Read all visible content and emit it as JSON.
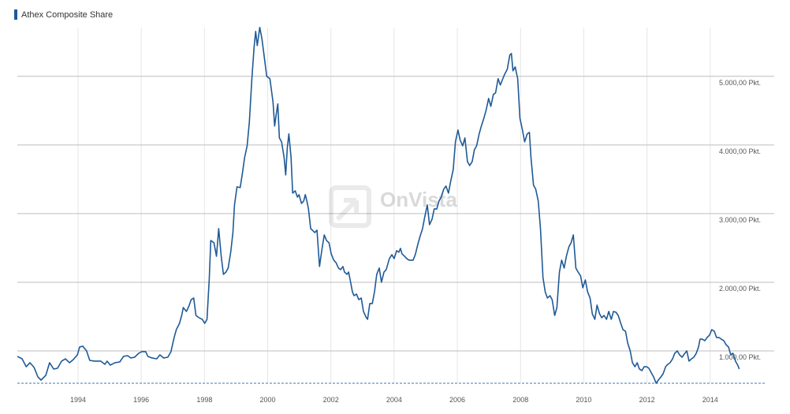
{
  "chart_data": {
    "type": "line",
    "watermark": "OnVista",
    "x": [
      1992.08,
      1992.23,
      1992.36,
      1992.48,
      1992.61,
      1992.73,
      1992.83,
      1992.98,
      1993.1,
      1993.23,
      1993.35,
      1993.48,
      1993.6,
      1993.73,
      1993.85,
      1993.98,
      1994.05,
      1994.15,
      1994.27,
      1994.37,
      1994.52,
      1994.72,
      1994.85,
      1994.92,
      1995.02,
      1995.17,
      1995.32,
      1995.44,
      1995.57,
      1995.67,
      1995.79,
      1995.92,
      1996.02,
      1996.14,
      1996.21,
      1996.34,
      1996.49,
      1996.59,
      1996.71,
      1996.84,
      1996.94,
      1997.04,
      1997.11,
      1997.21,
      1997.28,
      1997.33,
      1997.43,
      1997.51,
      1997.58,
      1997.66,
      1997.73,
      1997.83,
      1997.93,
      1998.01,
      1998.08,
      1998.15,
      1998.2,
      1998.3,
      1998.38,
      1998.45,
      1998.53,
      1998.6,
      1998.68,
      1998.75,
      1998.83,
      1998.9,
      1998.95,
      1999.03,
      1999.13,
      1999.2,
      1999.27,
      1999.35,
      1999.42,
      1999.5,
      1999.57,
      1999.62,
      1999.67,
      1999.75,
      1999.82,
      1999.9,
      1999.97,
      2000.07,
      2000.12,
      2000.17,
      2000.22,
      2000.27,
      2000.32,
      2000.37,
      2000.44,
      2000.52,
      2000.57,
      2000.62,
      2000.67,
      2000.74,
      2000.79,
      2000.87,
      2000.94,
      2000.99,
      2001.07,
      2001.14,
      2001.19,
      2001.24,
      2001.29,
      2001.36,
      2001.44,
      2001.49,
      2001.56,
      2001.64,
      2001.71,
      2001.79,
      2001.86,
      2001.94,
      2002.01,
      2002.09,
      2002.16,
      2002.24,
      2002.31,
      2002.38,
      2002.43,
      2002.51,
      2002.56,
      2002.61,
      2002.68,
      2002.73,
      2002.81,
      2002.88,
      2002.96,
      2003.03,
      2003.11,
      2003.16,
      2003.23,
      2003.31,
      2003.38,
      2003.45,
      2003.53,
      2003.6,
      2003.68,
      2003.75,
      2003.85,
      2003.93,
      2004.0,
      2004.08,
      2004.15,
      2004.2,
      2004.25,
      2004.33,
      2004.4,
      2004.47,
      2004.6,
      2004.67,
      2004.75,
      2004.82,
      2004.9,
      2004.97,
      2005.05,
      2005.12,
      2005.2,
      2005.27,
      2005.35,
      2005.42,
      2005.49,
      2005.57,
      2005.64,
      2005.72,
      2005.79,
      2005.87,
      2005.94,
      2006.02,
      2006.09,
      2006.17,
      2006.24,
      2006.32,
      2006.39,
      2006.47,
      2006.54,
      2006.61,
      2006.69,
      2006.76,
      2006.84,
      2006.91,
      2006.99,
      2007.06,
      2007.14,
      2007.21,
      2007.29,
      2007.36,
      2007.44,
      2007.49,
      2007.58,
      2007.66,
      2007.71,
      2007.76,
      2007.83,
      2007.91,
      2007.98,
      2008.06,
      2008.13,
      2008.21,
      2008.28,
      2008.33,
      2008.41,
      2008.48,
      2008.56,
      2008.63,
      2008.71,
      2008.78,
      2008.85,
      2008.93,
      2009.0,
      2009.08,
      2009.15,
      2009.23,
      2009.3,
      2009.38,
      2009.45,
      2009.53,
      2009.6,
      2009.67,
      2009.75,
      2009.82,
      2009.9,
      2009.97,
      2010.05,
      2010.12,
      2010.2,
      2010.27,
      2010.35,
      2010.42,
      2010.5,
      2010.57,
      2010.64,
      2010.72,
      2010.79,
      2010.87,
      2010.94,
      2011.02,
      2011.09,
      2011.17,
      2011.24,
      2011.32,
      2011.39,
      2011.47,
      2011.54,
      2011.62,
      2011.69,
      2011.76,
      2011.84,
      2011.91,
      2011.99,
      2012.06,
      2012.14,
      2012.21,
      2012.29,
      2012.36,
      2012.44,
      2012.51,
      2012.59,
      2012.66,
      2012.73,
      2012.81,
      2012.88,
      2012.96,
      2013.03,
      2013.11,
      2013.18,
      2013.26,
      2013.33,
      2013.41,
      2013.48,
      2013.56,
      2013.63,
      2013.68,
      2013.75,
      2013.83,
      2013.9,
      2013.98,
      2014.05,
      2014.13,
      2014.2,
      2014.28,
      2014.35,
      2014.43,
      2014.5,
      2014.58,
      2014.65,
      2014.72,
      2014.8,
      2014.87,
      2014.92
    ],
    "series": [
      {
        "name": "Athex Composite Share",
        "color": "#1f5a96",
        "values": [
          920,
          885,
          770,
          828,
          759,
          621,
          575,
          644,
          828,
          736,
          747,
          851,
          885,
          828,
          874,
          943,
          1057,
          1069,
          1000,
          862,
          851,
          851,
          805,
          851,
          793,
          828,
          839,
          920,
          931,
          897,
          908,
          966,
          989,
          989,
          920,
          897,
          885,
          943,
          897,
          908,
          989,
          1195,
          1310,
          1402,
          1517,
          1632,
          1575,
          1655,
          1747,
          1770,
          1517,
          1483,
          1460,
          1402,
          1460,
          2034,
          2609,
          2575,
          2379,
          2782,
          2379,
          2115,
          2149,
          2207,
          2437,
          2724,
          3126,
          3391,
          3379,
          3586,
          3816,
          3988,
          4333,
          4966,
          5425,
          5655,
          5448,
          5713,
          5540,
          5253,
          5000,
          4966,
          4793,
          4621,
          4276,
          4448,
          4598,
          4103,
          4046,
          3816,
          3563,
          3954,
          4161,
          3816,
          3299,
          3333,
          3241,
          3276,
          3149,
          3184,
          3276,
          3184,
          3069,
          2782,
          2747,
          2724,
          2759,
          2230,
          2460,
          2690,
          2609,
          2575,
          2414,
          2322,
          2287,
          2207,
          2184,
          2230,
          2149,
          2115,
          2149,
          2034,
          1862,
          1805,
          1828,
          1747,
          1770,
          1575,
          1494,
          1460,
          1690,
          1690,
          1862,
          2115,
          2207,
          2000,
          2149,
          2184,
          2345,
          2402,
          2345,
          2460,
          2437,
          2494,
          2414,
          2379,
          2345,
          2322,
          2322,
          2402,
          2552,
          2667,
          2782,
          2954,
          3126,
          2839,
          2920,
          3069,
          3069,
          3184,
          3241,
          3356,
          3402,
          3299,
          3471,
          3643,
          4046,
          4218,
          4069,
          3988,
          4103,
          3758,
          3701,
          3758,
          3931,
          3988,
          4161,
          4276,
          4391,
          4506,
          4678,
          4563,
          4736,
          4759,
          4966,
          4874,
          4966,
          5023,
          5103,
          5310,
          5333,
          5080,
          5138,
          4966,
          4391,
          4218,
          4046,
          4161,
          4184,
          3816,
          3414,
          3356,
          3184,
          2782,
          2069,
          1862,
          1770,
          1805,
          1747,
          1517,
          1632,
          2149,
          2322,
          2207,
          2379,
          2517,
          2575,
          2690,
          2207,
          2149,
          2092,
          1920,
          2034,
          1862,
          1770,
          1540,
          1460,
          1667,
          1540,
          1483,
          1517,
          1460,
          1575,
          1460,
          1575,
          1563,
          1517,
          1402,
          1310,
          1287,
          1115,
          1000,
          828,
          770,
          828,
          736,
          713,
          770,
          770,
          747,
          678,
          621,
          529,
          575,
          621,
          667,
          770,
          805,
          828,
          885,
          966,
          1000,
          943,
          908,
          954,
          1000,
          851,
          885,
          908,
          966,
          1057,
          1172,
          1172,
          1149,
          1195,
          1230,
          1310,
          1287,
          1195,
          1195,
          1172,
          1149,
          1092,
          1057,
          943,
          966,
          851,
          793,
          736
        ]
      }
    ],
    "xlim": [
      1992.08,
      2016.4
    ],
    "xticks": [
      1994,
      1996,
      1998,
      2000,
      2002,
      2004,
      2006,
      2008,
      2010,
      2012,
      2014
    ],
    "ylim": [
      529,
      5710
    ],
    "yticks": [
      {
        "value": 1000,
        "label": "1.000,00 Pkt."
      },
      {
        "value": 2000,
        "label": "2.000,00 Pkt."
      },
      {
        "value": 3000,
        "label": "3.000,00 Pkt."
      },
      {
        "value": 4000,
        "label": "4.000,00 Pkt."
      },
      {
        "value": 5000,
        "label": "5.000,00 Pkt."
      }
    ],
    "grid": true
  }
}
